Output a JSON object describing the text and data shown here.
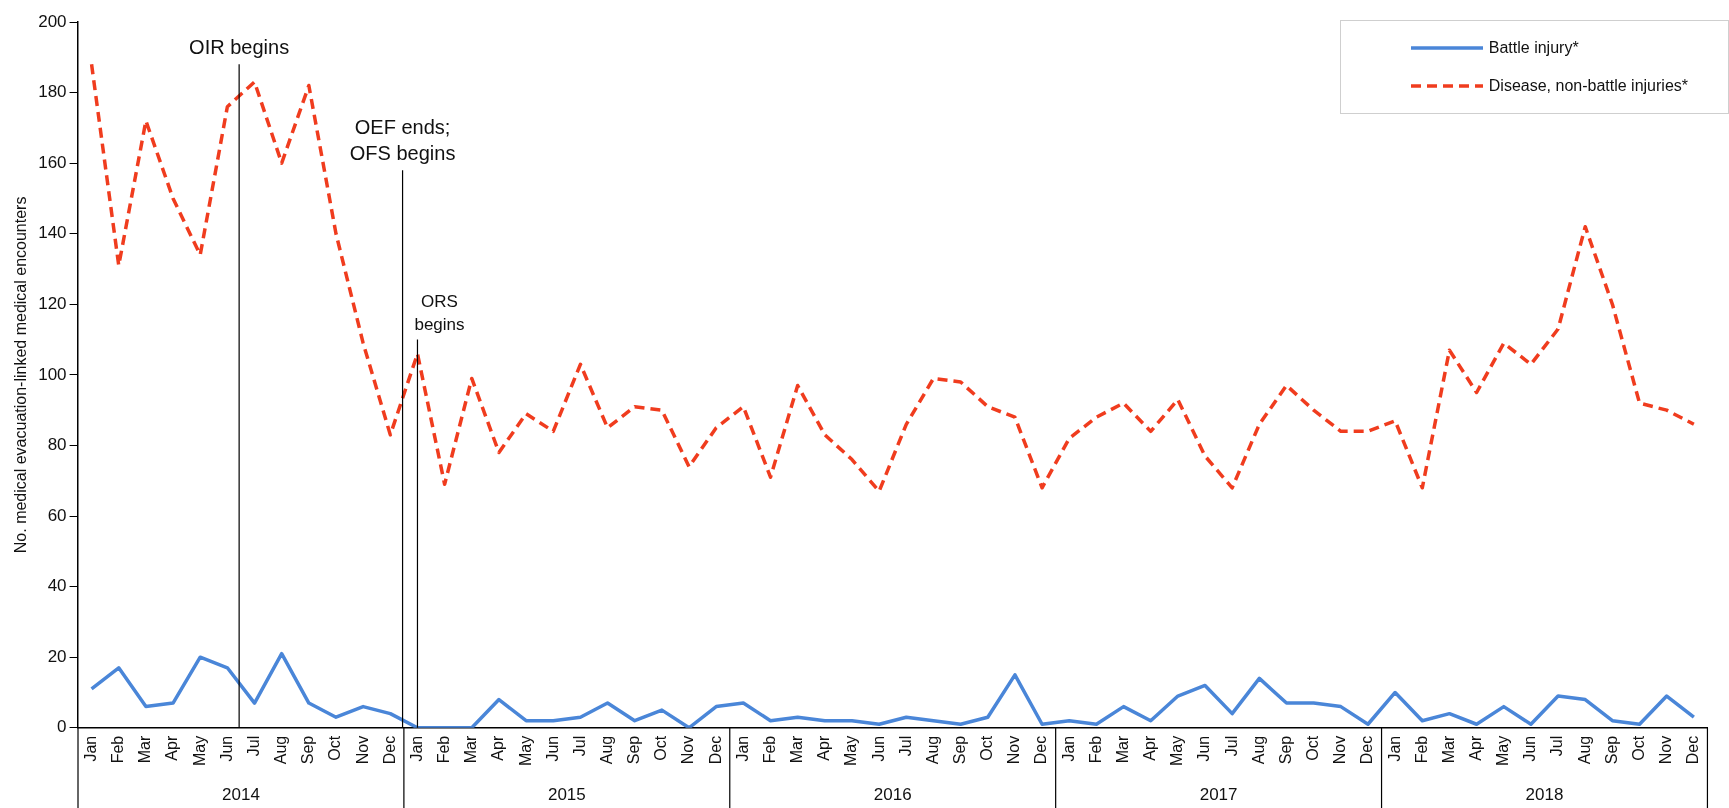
{
  "chart_data": {
    "type": "line",
    "ylabel": "No. medical evacuation-linked medical encounters",
    "x": [
      "2014-01",
      "2014-02",
      "2014-03",
      "2014-04",
      "2014-05",
      "2014-06",
      "2014-07",
      "2014-08",
      "2014-09",
      "2014-10",
      "2014-11",
      "2014-12",
      "2015-01",
      "2015-02",
      "2015-03",
      "2015-04",
      "2015-05",
      "2015-06",
      "2015-07",
      "2015-08",
      "2015-09",
      "2015-10",
      "2015-11",
      "2015-12",
      "2016-01",
      "2016-02",
      "2016-03",
      "2016-04",
      "2016-05",
      "2016-06",
      "2016-07",
      "2016-08",
      "2016-09",
      "2016-10",
      "2016-11",
      "2016-12",
      "2017-01",
      "2017-02",
      "2017-03",
      "2017-04",
      "2017-05",
      "2017-06",
      "2017-07",
      "2017-08",
      "2017-09",
      "2017-10",
      "2017-11",
      "2017-12",
      "2018-01",
      "2018-02",
      "2018-03",
      "2018-04",
      "2018-05",
      "2018-06",
      "2018-07",
      "2018-08",
      "2018-09",
      "2018-10",
      "2018-11",
      "2018-12"
    ],
    "xlim": [
      "2013-12-16",
      "2018-12-16"
    ],
    "xticks": [
      {
        "value": "2014-01",
        "label": "Jan"
      },
      {
        "value": "2014-02",
        "label": "Feb"
      },
      {
        "value": "2014-03",
        "label": "Mar"
      },
      {
        "value": "2014-04",
        "label": "Apr"
      },
      {
        "value": "2014-05",
        "label": "May"
      },
      {
        "value": "2014-06",
        "label": "Jun"
      },
      {
        "value": "2014-07",
        "label": "Jul"
      },
      {
        "value": "2014-08",
        "label": "Aug"
      },
      {
        "value": "2014-09",
        "label": "Sep"
      },
      {
        "value": "2014-10",
        "label": "Oct"
      },
      {
        "value": "2014-11",
        "label": "Nov"
      },
      {
        "value": "2014-12",
        "label": "Dec"
      },
      {
        "value": "2015-01",
        "label": "Jan"
      },
      {
        "value": "2015-02",
        "label": "Feb"
      },
      {
        "value": "2015-03",
        "label": "Mar"
      },
      {
        "value": "2015-04",
        "label": "Apr"
      },
      {
        "value": "2015-05",
        "label": "May"
      },
      {
        "value": "2015-06",
        "label": "Jun"
      },
      {
        "value": "2015-07",
        "label": "Jul"
      },
      {
        "value": "2015-08",
        "label": "Aug"
      },
      {
        "value": "2015-09",
        "label": "Sep"
      },
      {
        "value": "2015-10",
        "label": "Oct"
      },
      {
        "value": "2015-11",
        "label": "Nov"
      },
      {
        "value": "2015-12",
        "label": "Dec"
      },
      {
        "value": "2016-01",
        "label": "Jan"
      },
      {
        "value": "2016-02",
        "label": "Feb"
      },
      {
        "value": "2016-03",
        "label": "Mar"
      },
      {
        "value": "2016-04",
        "label": "Apr"
      },
      {
        "value": "2016-05",
        "label": "May"
      },
      {
        "value": "2016-06",
        "label": "Jun"
      },
      {
        "value": "2016-07",
        "label": "Jul"
      },
      {
        "value": "2016-08",
        "label": "Aug"
      },
      {
        "value": "2016-09",
        "label": "Sep"
      },
      {
        "value": "2016-10",
        "label": "Oct"
      },
      {
        "value": "2016-11",
        "label": "Nov"
      },
      {
        "value": "2016-12",
        "label": "Dec"
      },
      {
        "value": "2017-01",
        "label": "Jan"
      },
      {
        "value": "2017-02",
        "label": "Feb"
      },
      {
        "value": "2017-03",
        "label": "Mar"
      },
      {
        "value": "2017-04",
        "label": "Apr"
      },
      {
        "value": "2017-05",
        "label": "May"
      },
      {
        "value": "2017-06",
        "label": "Jun"
      },
      {
        "value": "2017-07",
        "label": "Jul"
      },
      {
        "value": "2017-08",
        "label": "Aug"
      },
      {
        "value": "2017-09",
        "label": "Sep"
      },
      {
        "value": "2017-10",
        "label": "Oct"
      },
      {
        "value": "2017-11",
        "label": "Nov"
      },
      {
        "value": "2017-12",
        "label": "Dec"
      },
      {
        "value": "2018-01",
        "label": "Jan"
      },
      {
        "value": "2018-02",
        "label": "Feb"
      },
      {
        "value": "2018-03",
        "label": "Mar"
      },
      {
        "value": "2018-04",
        "label": "Apr"
      },
      {
        "value": "2018-05",
        "label": "May"
      },
      {
        "value": "2018-06",
        "label": "Jun"
      },
      {
        "value": "2018-07",
        "label": "Jul"
      },
      {
        "value": "2018-08",
        "label": "Aug"
      },
      {
        "value": "2018-09",
        "label": "Sep"
      },
      {
        "value": "2018-10",
        "label": "Oct"
      },
      {
        "value": "2018-11",
        "label": "Nov"
      },
      {
        "value": "2018-12",
        "label": "Dec"
      }
    ],
    "annotations": [
      "2014",
      "2015",
      "2016",
      "2017",
      "2018"
    ],
    "series": [
      {
        "name": "Battle injury*",
        "color": "#4a86d8",
        "line_style": "solid",
        "values": [
          11,
          17,
          6,
          7,
          20,
          17,
          7,
          21,
          7,
          3,
          6,
          4,
          0,
          0,
          0,
          8,
          2,
          2,
          3,
          7,
          2,
          5,
          0,
          6,
          7,
          2,
          3,
          2,
          2,
          1,
          3,
          2,
          1,
          3,
          15,
          1,
          2,
          1,
          6,
          2,
          9,
          12,
          4,
          14,
          7,
          7,
          6,
          1,
          10,
          2,
          4,
          1,
          6,
          1,
          9,
          8,
          2,
          1,
          9,
          3
        ]
      },
      {
        "name": "Disease, non-battle injuries*",
        "color": "#f03c1e",
        "line_style": "dashed",
        "values": [
          188,
          131,
          172,
          150,
          134,
          176,
          183,
          160,
          182,
          140,
          109,
          83,
          106,
          69,
          99,
          78,
          89,
          84,
          103,
          85,
          91,
          90,
          74,
          85,
          91,
          71,
          97,
          83,
          76,
          67,
          86,
          99,
          98,
          91,
          88,
          68,
          82,
          88,
          92,
          84,
          93,
          77,
          68,
          86,
          97,
          90,
          84,
          84,
          87,
          68,
          107,
          95,
          109,
          103,
          113,
          142,
          120,
          92,
          90,
          86
        ]
      }
    ],
    "ylim": [
      0,
      200
    ],
    "yticks": [
      0,
      20,
      40,
      60,
      80,
      100,
      120,
      140,
      160,
      180,
      200
    ],
    "ref_lines": [
      {
        "axis": "x",
        "value": "2014-06-14",
        "label": "OIR begins"
      },
      {
        "axis": "x",
        "value": "2014-12-15",
        "label": "OEF ends; OFS begins"
      },
      {
        "axis": "x",
        "value": "2015-01-01",
        "label": "ORS begins"
      }
    ],
    "legend": "top right",
    "marker": "none"
  }
}
